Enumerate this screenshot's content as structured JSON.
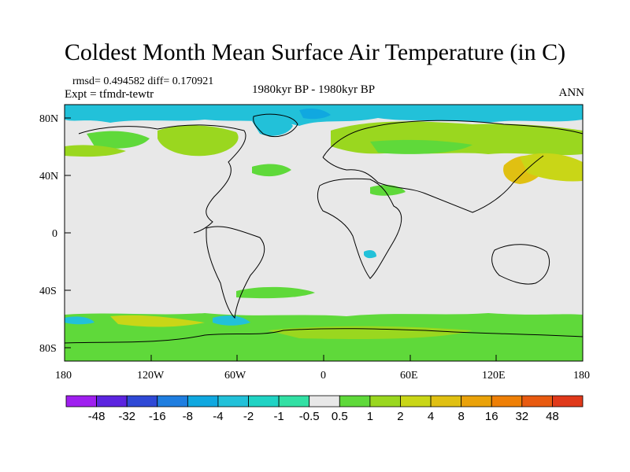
{
  "title": "Coldest Month Mean Surface Air Temperature (in C)",
  "stats": {
    "rmsd": "rmsd= 0.494582",
    "diff": "diff= 0.170921"
  },
  "expt": "Expt = tfmdr-tewtr",
  "period": "1980kyr BP - 1980kyr BP",
  "season": "ANN",
  "lat_labels": [
    "80N",
    "40N",
    "0",
    "40S",
    "80S"
  ],
  "lon_labels": [
    "180",
    "120W",
    "60W",
    "0",
    "60E",
    "120E",
    "180"
  ],
  "colorbar": {
    "labels": [
      "-48",
      "-32",
      "-16",
      "-8",
      "-4",
      "-2",
      "-1",
      "-0.5",
      "0.5",
      "1",
      "2",
      "4",
      "8",
      "16",
      "32",
      "48"
    ],
    "colors": [
      "#9f1fef",
      "#5c24e0",
      "#2f49d6",
      "#1f7ee0",
      "#10a8e0",
      "#22c1d9",
      "#20d3c4",
      "#32e0a4",
      "#e8e8e8",
      "#5fd93a",
      "#9ad71f",
      "#c9d617",
      "#e0c012",
      "#eaa20a",
      "#ee7f06",
      "#e85a10",
      "#e0391a"
    ]
  }
}
